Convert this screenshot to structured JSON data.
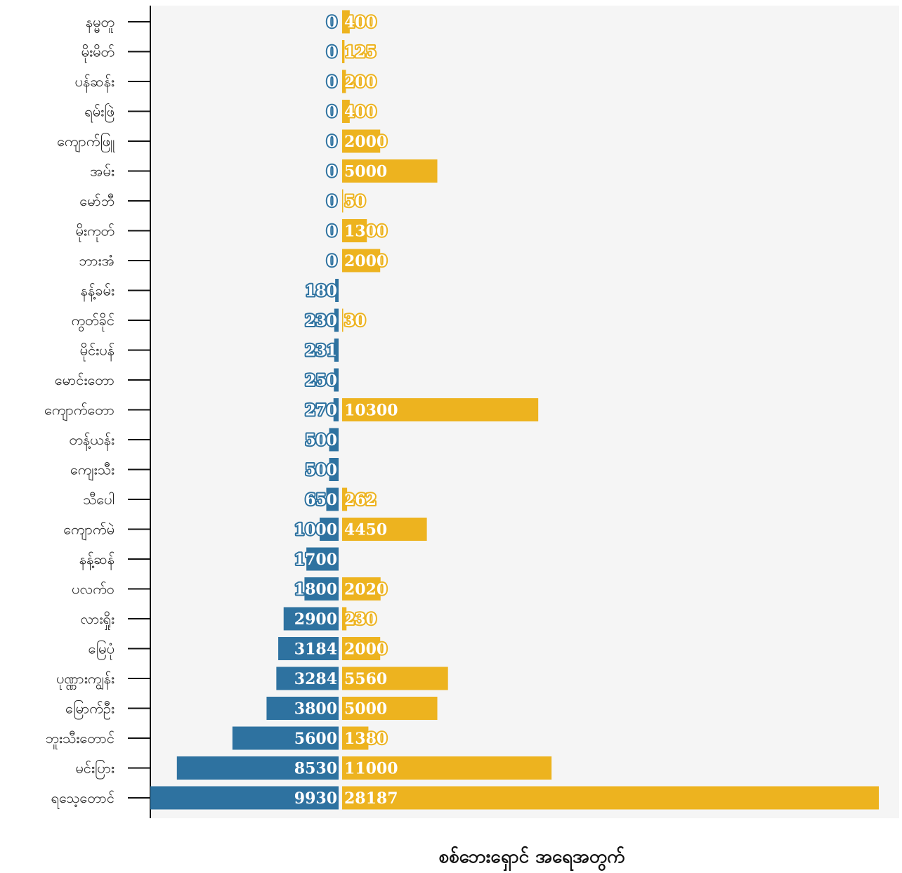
{
  "chart_data": {
    "type": "bar",
    "orientation": "horizontal-diverging",
    "title": "",
    "xlabel": "စစ်ဘေးရှောင် အရေအတွက်",
    "ylabel": "",
    "categories": [
      "နမ္မတူ",
      "မိုးမိတ်",
      "ပန်ဆန်း",
      "ရမ်းဖြဲ",
      "ကျောက်ဖြူ",
      "အမ်း",
      "မော်ဘီ",
      "မိုးကုတ်",
      "ဘားအံ",
      "နန့်ခမ်း",
      "ကွတ်ခိုင်",
      "မိုင်းပန်",
      "မောင်းတော",
      "ကျောက်တော",
      "တန့်ယန်း",
      "ကျေးသီး",
      "သီပေါ",
      "ကျောက်မဲ",
      "နန့်ဆန်",
      "ပလက်ဝ",
      "လားရှိုး",
      "မြေပုံ",
      "ပုဏ္ဏားကျွန်း",
      "မြောက်ဦး",
      "ဘူးသီးတောင်",
      "မင်းပြား",
      "ရသေ့တောင်"
    ],
    "series": [
      {
        "color": "#2e72a0",
        "side": "left",
        "values": [
          0,
          0,
          0,
          0,
          0,
          0,
          0,
          0,
          0,
          180,
          230,
          231,
          250,
          270,
          500,
          500,
          650,
          1000,
          1700,
          1800,
          2900,
          3184,
          3284,
          3800,
          5600,
          8530,
          9930
        ]
      },
      {
        "color": "#edb31f",
        "side": "right",
        "values": [
          400,
          125,
          200,
          400,
          2000,
          5000,
          50,
          1300,
          2000,
          null,
          30,
          null,
          null,
          10300,
          null,
          null,
          262,
          4450,
          null,
          2020,
          230,
          2000,
          5560,
          5000,
          1380,
          11000,
          28187
        ]
      }
    ],
    "colors": {
      "plot_background": "#f5f5f5",
      "axis": "#111111",
      "left_series": "#2e72a0",
      "right_series": "#edb31f"
    },
    "grid": false
  }
}
